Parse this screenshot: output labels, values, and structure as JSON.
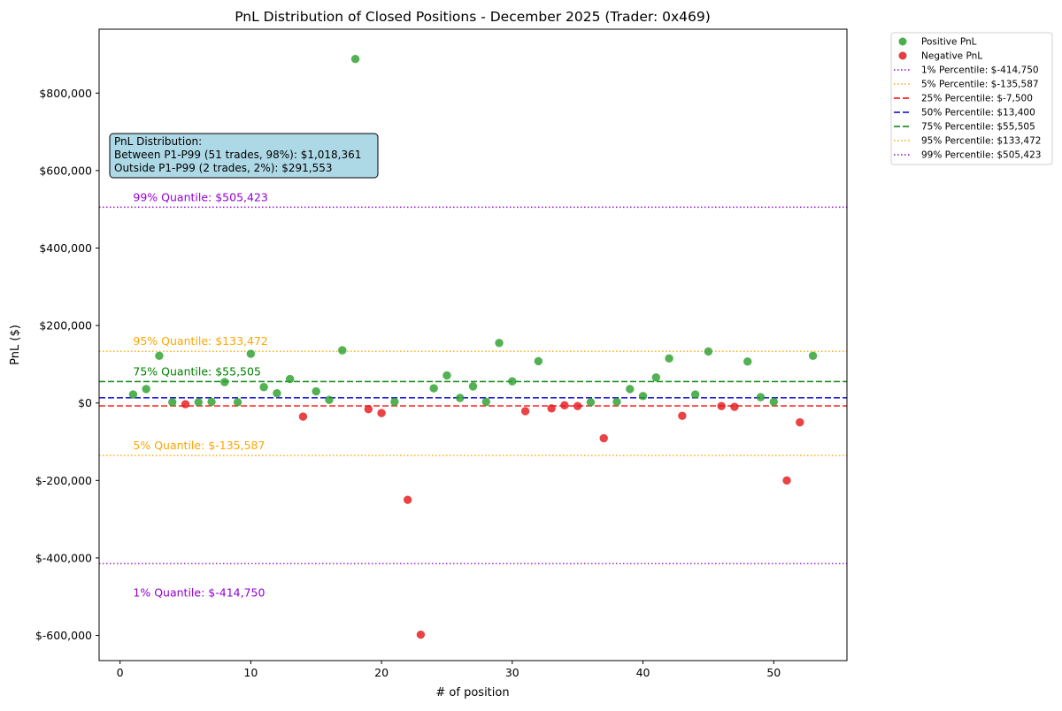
{
  "chart_data": {
    "type": "scatter",
    "title": "PnL Distribution of Closed Positions - December 2025 (Trader: 0x469)",
    "xlabel": "# of position",
    "ylabel": "PnL ($)",
    "xlim": [
      -1.6,
      55.6
    ],
    "ylim": [
      -665000,
      965000
    ],
    "xticks": [
      0,
      10,
      20,
      30,
      40,
      50
    ],
    "xtick_labels": [
      "0",
      "10",
      "20",
      "30",
      "40",
      "50"
    ],
    "yticks": [
      -600000,
      -400000,
      -200000,
      0,
      200000,
      400000,
      600000,
      800000
    ],
    "ytick_labels": [
      "$-600,000",
      "$-400,000",
      "$-200,000",
      "$0",
      "$200,000",
      "$400,000",
      "$600,000",
      "$800,000"
    ],
    "grid": false,
    "legend_position": "outside-top-right",
    "series": [
      {
        "name": "Positive PnL",
        "color": "#2ca02c",
        "points": [
          [
            1,
            22000
          ],
          [
            2,
            36000
          ],
          [
            3,
            122000
          ],
          [
            4,
            2000
          ],
          [
            6,
            2000
          ],
          [
            7,
            3000
          ],
          [
            8,
            54000
          ],
          [
            9,
            2000
          ],
          [
            10,
            127000
          ],
          [
            11,
            41000
          ],
          [
            12,
            25000
          ],
          [
            13,
            62000
          ],
          [
            15,
            30000
          ],
          [
            16,
            8000
          ],
          [
            17,
            136000
          ],
          [
            18,
            888000
          ],
          [
            21,
            3000
          ],
          [
            24,
            38000
          ],
          [
            25,
            71000
          ],
          [
            26,
            13000
          ],
          [
            27,
            43000
          ],
          [
            28,
            3000
          ],
          [
            29,
            155000
          ],
          [
            30,
            56000
          ],
          [
            32,
            108000
          ],
          [
            36,
            2000
          ],
          [
            38,
            3000
          ],
          [
            39,
            36000
          ],
          [
            40,
            18000
          ],
          [
            41,
            66000
          ],
          [
            42,
            115000
          ],
          [
            44,
            22000
          ],
          [
            45,
            133000
          ],
          [
            48,
            107000
          ],
          [
            49,
            15000
          ],
          [
            50,
            3000
          ],
          [
            53,
            122000
          ]
        ]
      },
      {
        "name": "Negative PnL",
        "color": "#e41a1c",
        "points": [
          [
            5,
            -3000
          ],
          [
            14,
            -35000
          ],
          [
            19,
            -16000
          ],
          [
            20,
            -26000
          ],
          [
            22,
            -250000
          ],
          [
            23,
            -598000
          ],
          [
            31,
            -21000
          ],
          [
            33,
            -14000
          ],
          [
            34,
            -6000
          ],
          [
            35,
            -8000
          ],
          [
            37,
            -91000
          ],
          [
            43,
            -33000
          ],
          [
            46,
            -8000
          ],
          [
            47,
            -10000
          ],
          [
            51,
            -200000
          ],
          [
            52,
            -50000
          ]
        ]
      }
    ],
    "reference_lines": [
      {
        "legend": "1% Percentile: $-414,750",
        "value": -414750,
        "color": "#9400d3",
        "style": "dotted",
        "annotation": "1% Quantile: $-414,750"
      },
      {
        "legend": "5% Percentile: $-135,587",
        "value": -135587,
        "color": "#ffa500",
        "style": "dotted",
        "annotation": "5% Quantile: $-135,587"
      },
      {
        "legend": "25% Percentile: $-7,500",
        "value": -7500,
        "color": "#ff0000",
        "style": "dashed",
        "annotation": ""
      },
      {
        "legend": "50% Percentile: $13,400",
        "value": 13400,
        "color": "#0000cd",
        "style": "dashed",
        "annotation": ""
      },
      {
        "legend": "75% Percentile: $55,505",
        "value": 55505,
        "color": "#008000",
        "style": "dashed",
        "annotation": "75% Quantile: $55,505"
      },
      {
        "legend": "95% Percentile: $133,472",
        "value": 133472,
        "color": "#ffa500",
        "style": "dotted",
        "annotation": "95% Quantile: $133,472"
      },
      {
        "legend": "99% Percentile: $505,423",
        "value": 505423,
        "color": "#9400d3",
        "style": "dotted",
        "annotation": "99% Quantile: $505,423"
      }
    ],
    "info_box": {
      "lines": [
        "PnL Distribution:",
        "Between P1-P99 (51 trades, 98%): $1,018,361",
        "Outside P1-P99 (2 trades, 2%): $291,553"
      ],
      "background": "#add8e6"
    }
  }
}
